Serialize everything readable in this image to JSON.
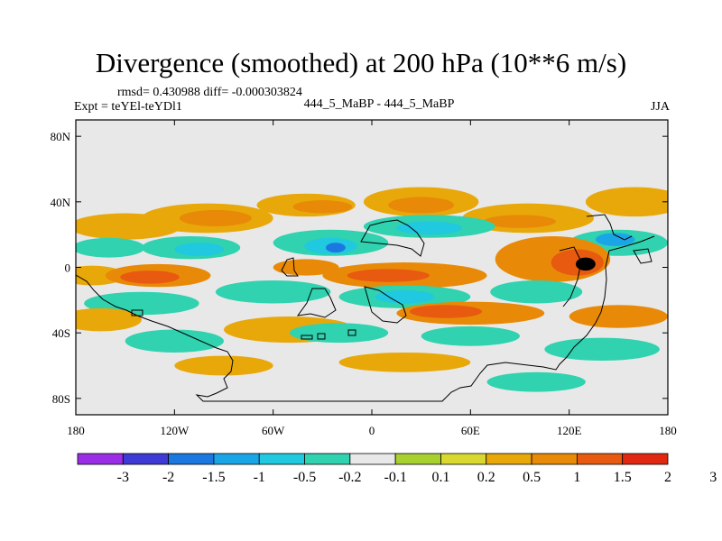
{
  "header": {
    "title": "Divergence (smoothed) at 200 hPa (10**6 m/s)",
    "stats": "rmsd= 0.430988  diff= -0.000303824",
    "experiment": "Expt = teYEl-teYDl1",
    "case_label": "444_5_MaBP - 444_5_MaBP",
    "season": "JJA"
  },
  "chart_data": {
    "type": "heatmap",
    "title": "Divergence (smoothed) at 200 hPa (10**6 m/s)",
    "xlabel": "",
    "ylabel": "",
    "xlim": [
      -180,
      180
    ],
    "ylim": [
      -90,
      90
    ],
    "x_ticks": [
      {
        "value": -180,
        "label": "180"
      },
      {
        "value": -120,
        "label": "120W"
      },
      {
        "value": -60,
        "label": "60W"
      },
      {
        "value": 0,
        "label": "0"
      },
      {
        "value": 60,
        "label": "60E"
      },
      {
        "value": 120,
        "label": "120E"
      },
      {
        "value": 180,
        "label": "180"
      }
    ],
    "y_ticks": [
      {
        "value": 80,
        "label": "80N"
      },
      {
        "value": 40,
        "label": "40N"
      },
      {
        "value": 0,
        "label": "0"
      },
      {
        "value": -40,
        "label": "40S"
      },
      {
        "value": -80,
        "label": "80S"
      }
    ],
    "colorbar": {
      "labels": [
        "-3",
        "-2",
        "-1.5",
        "-1",
        "-0.5",
        "-0.2",
        "-0.1",
        "0.1",
        "0.2",
        "0.5",
        "1",
        "1.5",
        "2",
        "3"
      ],
      "colors": [
        "#9b2de6",
        "#3d3ad6",
        "#1a78e0",
        "#1aa6e6",
        "#20c8e0",
        "#30d2b0",
        "#e8e8e8",
        "#a8d02e",
        "#d8d830",
        "#e8a80a",
        "#e88a08",
        "#e85a10",
        "#e02810"
      ],
      "background": "#e8e8e8"
    },
    "blobs": [
      {
        "lon": -150,
        "lat": 25,
        "rx": 34,
        "ry": 8,
        "level": "0.2"
      },
      {
        "lon": -100,
        "lat": 30,
        "rx": 40,
        "ry": 9,
        "level": "0.2"
      },
      {
        "lon": -95,
        "lat": 30,
        "rx": 22,
        "ry": 5,
        "level": "0.5"
      },
      {
        "lon": -40,
        "lat": 38,
        "rx": 30,
        "ry": 7,
        "level": "0.2"
      },
      {
        "lon": -30,
        "lat": 37,
        "rx": 18,
        "ry": 4,
        "level": "0.5"
      },
      {
        "lon": 30,
        "lat": 40,
        "rx": 35,
        "ry": 9,
        "level": "0.2"
      },
      {
        "lon": 30,
        "lat": 38,
        "rx": 20,
        "ry": 5,
        "level": "0.5"
      },
      {
        "lon": 95,
        "lat": 30,
        "rx": 40,
        "ry": 9,
        "level": "0.2"
      },
      {
        "lon": 90,
        "lat": 28,
        "rx": 22,
        "ry": 4,
        "level": "0.5"
      },
      {
        "lon": 160,
        "lat": 40,
        "rx": 30,
        "ry": 9,
        "level": "0.2"
      },
      {
        "lon": -160,
        "lat": 12,
        "rx": 22,
        "ry": 6,
        "level": "-0.2"
      },
      {
        "lon": -110,
        "lat": 12,
        "rx": 30,
        "ry": 7,
        "level": "-0.2"
      },
      {
        "lon": -105,
        "lat": 11,
        "rx": 15,
        "ry": 4,
        "level": "-0.5"
      },
      {
        "lon": -25,
        "lat": 15,
        "rx": 35,
        "ry": 8,
        "level": "-0.2"
      },
      {
        "lon": -25,
        "lat": 13,
        "rx": 16,
        "ry": 5,
        "level": "-0.5"
      },
      {
        "lon": -22,
        "lat": 12,
        "rx": 6,
        "ry": 3,
        "level": "-1.5"
      },
      {
        "lon": 35,
        "lat": 25,
        "rx": 40,
        "ry": 7,
        "level": "-0.2"
      },
      {
        "lon": 35,
        "lat": 24,
        "rx": 20,
        "ry": 4,
        "level": "-0.5"
      },
      {
        "lon": 150,
        "lat": 15,
        "rx": 30,
        "ry": 8,
        "level": "-0.2"
      },
      {
        "lon": 148,
        "lat": 17,
        "rx": 12,
        "ry": 4,
        "level": "-1"
      },
      {
        "lon": -170,
        "lat": -5,
        "rx": 20,
        "ry": 6,
        "level": "0.2"
      },
      {
        "lon": -130,
        "lat": -5,
        "rx": 32,
        "ry": 7,
        "level": "0.5"
      },
      {
        "lon": -135,
        "lat": -6,
        "rx": 18,
        "ry": 4,
        "level": "1"
      },
      {
        "lon": -40,
        "lat": 0,
        "rx": 20,
        "ry": 5,
        "level": "0.5"
      },
      {
        "lon": 20,
        "lat": -5,
        "rx": 50,
        "ry": 8,
        "level": "0.5"
      },
      {
        "lon": 10,
        "lat": -5,
        "rx": 25,
        "ry": 4,
        "level": "1"
      },
      {
        "lon": 110,
        "lat": 5,
        "rx": 35,
        "ry": 14,
        "level": "0.5"
      },
      {
        "lon": 125,
        "lat": 3,
        "rx": 16,
        "ry": 8,
        "level": "1"
      },
      {
        "lon": 130,
        "lat": 2,
        "rx": 6,
        "ry": 4,
        "level": "2"
      },
      {
        "lon": -140,
        "lat": -22,
        "rx": 35,
        "ry": 7,
        "level": "-0.2"
      },
      {
        "lon": -60,
        "lat": -15,
        "rx": 35,
        "ry": 7,
        "level": "-0.2"
      },
      {
        "lon": 20,
        "lat": -18,
        "rx": 40,
        "ry": 7,
        "level": "-0.2"
      },
      {
        "lon": 20,
        "lat": -18,
        "rx": 18,
        "ry": 4,
        "level": "-0.5"
      },
      {
        "lon": 100,
        "lat": -15,
        "rx": 28,
        "ry": 7,
        "level": "-0.2"
      },
      {
        "lon": -165,
        "lat": -32,
        "rx": 25,
        "ry": 7,
        "level": "0.2"
      },
      {
        "lon": -50,
        "lat": -38,
        "rx": 40,
        "ry": 8,
        "level": "0.2"
      },
      {
        "lon": 60,
        "lat": -28,
        "rx": 45,
        "ry": 7,
        "level": "0.5"
      },
      {
        "lon": 45,
        "lat": -27,
        "rx": 22,
        "ry": 4,
        "level": "1"
      },
      {
        "lon": 150,
        "lat": -30,
        "rx": 30,
        "ry": 7,
        "level": "0.5"
      },
      {
        "lon": -120,
        "lat": -45,
        "rx": 30,
        "ry": 7,
        "level": "-0.2"
      },
      {
        "lon": -20,
        "lat": -40,
        "rx": 30,
        "ry": 6,
        "level": "-0.2"
      },
      {
        "lon": 60,
        "lat": -42,
        "rx": 30,
        "ry": 6,
        "level": "-0.2"
      },
      {
        "lon": 140,
        "lat": -50,
        "rx": 35,
        "ry": 7,
        "level": "-0.2"
      },
      {
        "lon": -90,
        "lat": -60,
        "rx": 30,
        "ry": 6,
        "level": "0.2"
      },
      {
        "lon": 20,
        "lat": -58,
        "rx": 40,
        "ry": 6,
        "level": "0.2"
      },
      {
        "lon": 100,
        "lat": -70,
        "rx": 30,
        "ry": 6,
        "level": "-0.2"
      }
    ]
  }
}
